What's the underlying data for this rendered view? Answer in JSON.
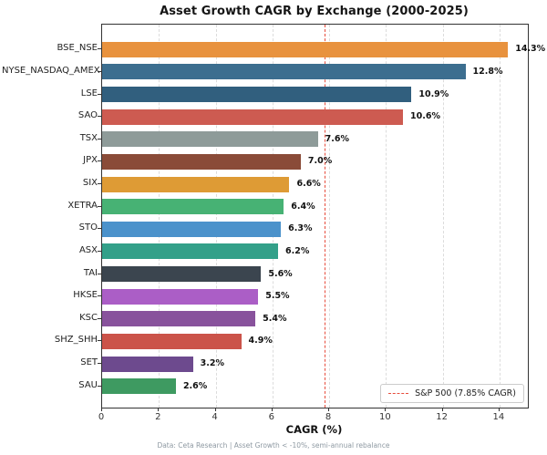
{
  "header": {
    "title": "Asset Growth CAGR by Exchange (2000-2025)"
  },
  "footer": {
    "note": "Data: Ceta Research | Asset Growth < -10%, semi-annual rebalance"
  },
  "chart_data": {
    "type": "bar",
    "orientation": "horizontal",
    "title": "Asset Growth CAGR by Exchange (2000-2025)",
    "xlabel": "CAGR (%)",
    "ylabel": "",
    "xlim": [
      0,
      15
    ],
    "xticks": [
      0,
      2,
      4,
      6,
      8,
      10,
      12,
      14
    ],
    "grid": "vertical-dashed",
    "categories": [
      "BSE_NSE",
      "NYSE_NASDAQ_AMEX",
      "LSE",
      "SAO",
      "TSX",
      "JPX",
      "SIX",
      "XETRA",
      "STO",
      "ASX",
      "TAI",
      "HKSE",
      "KSC",
      "SHZ_SHH",
      "SET",
      "SAU"
    ],
    "values": [
      14.3,
      12.8,
      10.9,
      10.6,
      7.6,
      7.0,
      6.6,
      6.4,
      6.3,
      6.2,
      5.6,
      5.5,
      5.4,
      4.9,
      3.2,
      2.6
    ],
    "value_labels": [
      "14.3%",
      "12.8%",
      "10.9%",
      "10.6%",
      "7.6%",
      "7.0%",
      "6.6%",
      "6.4%",
      "6.3%",
      "6.2%",
      "5.6%",
      "5.5%",
      "5.4%",
      "4.9%",
      "3.2%",
      "2.6%"
    ],
    "colors": [
      "#E8923E",
      "#3C6E8F",
      "#315F7E",
      "#CD5B51",
      "#8E9B99",
      "#8A4B38",
      "#DE9B35",
      "#47B274",
      "#4B92CB",
      "#33A089",
      "#3B454F",
      "#AB5EC6",
      "#88529C",
      "#CB5349",
      "#6D4A8E",
      "#3E9A61"
    ],
    "reference_line": {
      "axis": "x",
      "value": 7.85,
      "color": "#e74c3c",
      "style": "dashed"
    },
    "legend": {
      "position": "lower right",
      "entries": [
        {
          "label": "S&P 500 (7.85% CAGR)",
          "color": "#e74c3c",
          "style": "dashed-line"
        }
      ]
    }
  }
}
